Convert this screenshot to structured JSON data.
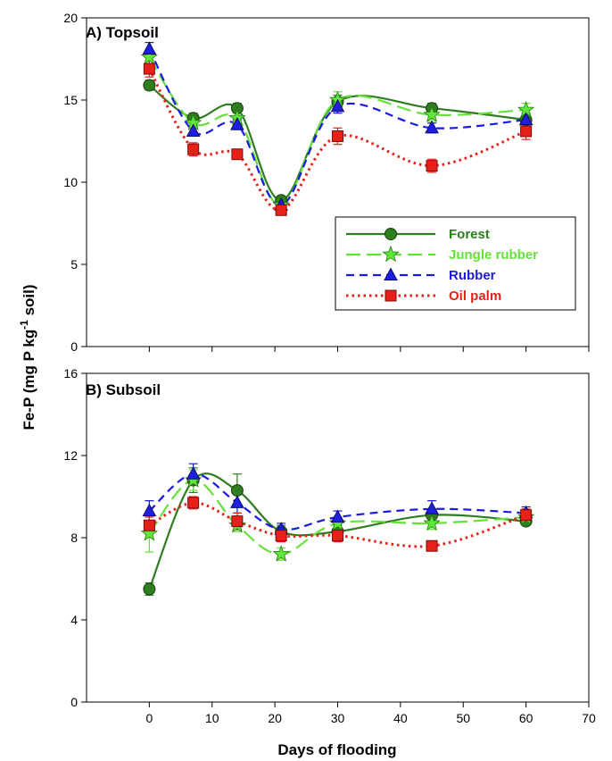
{
  "chart_data": {
    "type": "line",
    "xlabel": "Days of flooding",
    "ylabel_main": "Fe-P (mg P kg",
    "ylabel_sup": "-1",
    "ylabel_tail": " soil)",
    "xlim": [
      -10,
      70
    ],
    "xticks": [
      0,
      10,
      20,
      30,
      40,
      50,
      60,
      70
    ],
    "legend": {
      "placement": "center-right of panel A"
    },
    "series_styles": [
      {
        "name": "Forest",
        "color": "#2e7d1f",
        "dash": "",
        "marker": "circle",
        "marker_fill": "#2e7d1f"
      },
      {
        "name": "Jungle rubber",
        "color": "#66e03a",
        "dash": "16,7",
        "marker": "star",
        "marker_fill": "#5ee83a"
      },
      {
        "name": "Rubber",
        "color": "#1a1ae6",
        "dash": "9,6",
        "marker": "triangle",
        "marker_fill": "#1f1fe0"
      },
      {
        "name": "Oil palm",
        "color": "#e8201a",
        "dash": "2.5,4",
        "marker": "square",
        "marker_fill": "#e8201a"
      }
    ],
    "panels": [
      {
        "title": "A) Topsoil",
        "ylim": [
          0,
          20
        ],
        "yticks": [
          0,
          5,
          10,
          15,
          20
        ],
        "x": [
          0,
          7,
          14,
          21,
          30,
          45,
          60
        ],
        "series": [
          {
            "name": "Forest",
            "values": [
              15.9,
              13.9,
              14.5,
              8.9,
              14.9,
              14.5,
              13.8
            ],
            "errors": [
              0.3,
              0.3,
              0.3,
              0.2,
              0.4,
              0.3,
              0.3
            ]
          },
          {
            "name": "Jungle rubber",
            "values": [
              17.6,
              13.6,
              13.9,
              8.6,
              15.0,
              14.1,
              14.4
            ],
            "errors": [
              0.4,
              0.3,
              0.3,
              0.2,
              0.5,
              0.4,
              0.4
            ]
          },
          {
            "name": "Rubber",
            "values": [
              18.1,
              13.1,
              13.5,
              8.6,
              14.6,
              13.3,
              13.8
            ],
            "errors": [
              0.4,
              0.3,
              0.3,
              0.2,
              0.4,
              0.3,
              0.4
            ]
          },
          {
            "name": "Oil palm",
            "values": [
              16.9,
              12.0,
              11.7,
              8.3,
              12.8,
              11.0,
              13.1
            ],
            "errors": [
              0.5,
              0.4,
              0.3,
              0.2,
              0.5,
              0.4,
              0.5
            ]
          }
        ]
      },
      {
        "title": "B) Subsoil",
        "ylim": [
          0,
          16
        ],
        "yticks": [
          0,
          4,
          8,
          12,
          16
        ],
        "x": [
          0,
          7,
          14,
          21,
          30,
          45,
          60
        ],
        "series": [
          {
            "name": "Forest",
            "values": [
              5.5,
              10.8,
              10.3,
              8.3,
              8.3,
              9.1,
              8.8
            ],
            "errors": [
              0.3,
              0.6,
              0.8,
              0.3,
              0.3,
              0.3,
              0.2
            ]
          },
          {
            "name": "Jungle rubber",
            "values": [
              8.2,
              10.8,
              8.6,
              7.2,
              8.7,
              8.7,
              9.0
            ],
            "errors": [
              0.9,
              0.5,
              0.3,
              0.3,
              0.3,
              0.3,
              0.3
            ]
          },
          {
            "name": "Rubber",
            "values": [
              9.3,
              11.1,
              9.7,
              8.4,
              9.0,
              9.4,
              9.2
            ],
            "errors": [
              0.5,
              0.5,
              0.5,
              0.3,
              0.3,
              0.4,
              0.3
            ]
          },
          {
            "name": "Oil palm",
            "values": [
              8.6,
              9.7,
              8.8,
              8.1,
              8.1,
              7.6,
              9.1
            ],
            "errors": [
              0.4,
              0.3,
              0.4,
              0.3,
              0.3,
              0.2,
              0.3
            ]
          }
        ]
      }
    ]
  }
}
